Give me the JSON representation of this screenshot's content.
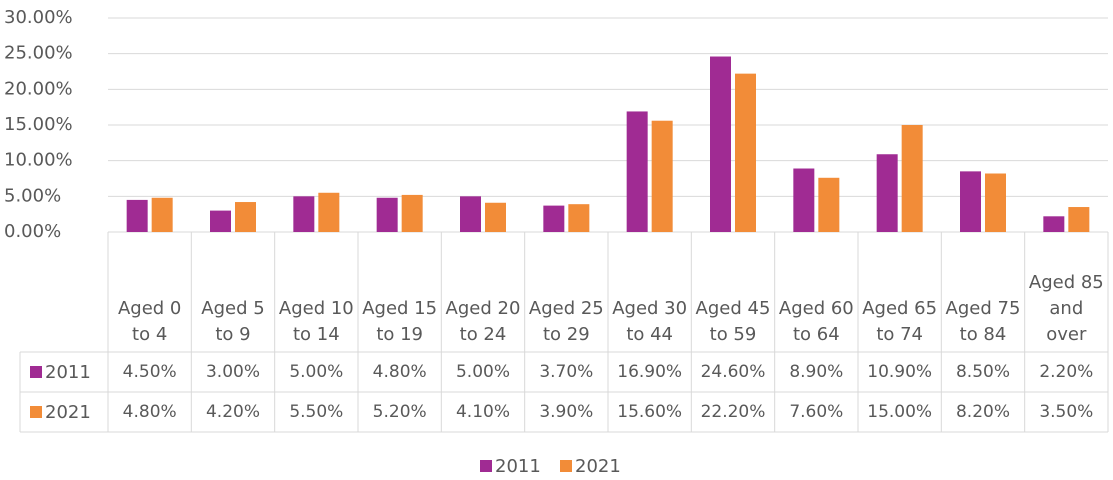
{
  "chart_data": {
    "type": "bar",
    "categories": [
      "Aged 0 to 4",
      "Aged 5 to 9",
      "Aged 10 to 14",
      "Aged 15 to 19",
      "Aged 20 to 24",
      "Aged 25 to 29",
      "Aged 30 to 44",
      "Aged 45 to 59",
      "Aged 60 to 64",
      "Aged 65 to 74",
      "Aged 75 to 84",
      "Aged 85 and over"
    ],
    "series": [
      {
        "name": "2011",
        "color": "#A02B93",
        "values": [
          4.5,
          3.0,
          5.0,
          4.8,
          5.0,
          3.7,
          16.9,
          24.6,
          8.9,
          10.9,
          8.5,
          2.2
        ],
        "value_labels": [
          "4.50%",
          "3.00%",
          "5.00%",
          "4.80%",
          "5.00%",
          "3.70%",
          "16.90%",
          "24.60%",
          "8.90%",
          "10.90%",
          "8.50%",
          "2.20%"
        ]
      },
      {
        "name": "2021",
        "color": "#F28C38",
        "values": [
          4.8,
          4.2,
          5.5,
          5.2,
          4.1,
          3.9,
          15.6,
          22.2,
          7.6,
          15.0,
          8.2,
          3.5
        ],
        "value_labels": [
          "4.80%",
          "4.20%",
          "5.50%",
          "5.20%",
          "4.10%",
          "3.90%",
          "15.60%",
          "22.20%",
          "7.60%",
          "15.00%",
          "8.20%",
          "3.50%"
        ]
      }
    ],
    "ylim": [
      0,
      30
    ],
    "yticks": [
      {
        "value": 0,
        "label": "0.00%"
      },
      {
        "value": 5,
        "label": "5.00%"
      },
      {
        "value": 10,
        "label": "10.00%"
      },
      {
        "value": 15,
        "label": "15.00%"
      },
      {
        "value": 20,
        "label": "20.00%"
      },
      {
        "value": 25,
        "label": "25.00%"
      },
      {
        "value": 30,
        "label": "30.00%"
      }
    ],
    "grid": true,
    "data_table": true,
    "legend": "bottom"
  }
}
